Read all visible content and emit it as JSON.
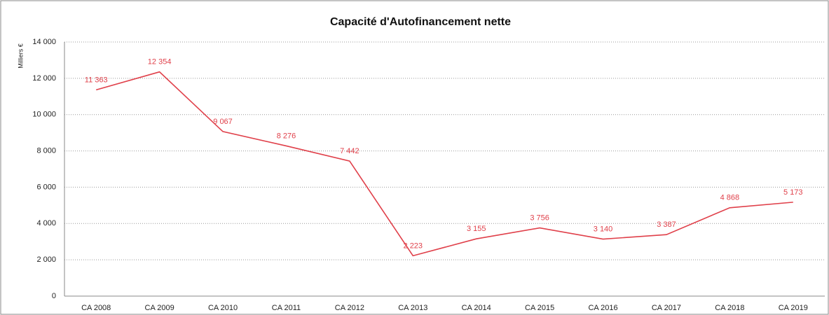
{
  "chart_data": {
    "type": "line",
    "title": "Capacité d'Autofinancement nette",
    "y_label": "Milliers €",
    "categories": [
      "CA 2008",
      "CA 2009",
      "CA 2010",
      "CA 2011",
      "CA 2012",
      "CA 2013",
      "CA 2014",
      "CA 2015",
      "CA 2016",
      "CA 2017",
      "CA 2018",
      "CA 2019"
    ],
    "series": [
      {
        "name": "Capacité d'Autofinancement nette",
        "color": "#e0404a",
        "values": [
          11363,
          12354,
          9067,
          8276,
          7442,
          2223,
          3155,
          3756,
          3140,
          3387,
          4868,
          5173
        ],
        "value_labels": [
          "11 363",
          "12 354",
          "9 067",
          "8 276",
          "7 442",
          "2 223",
          "3 155",
          "3 756",
          "3 140",
          "3 387",
          "4 868",
          "5 173"
        ]
      }
    ],
    "ylim": [
      0,
      14000
    ],
    "yticks": [
      0,
      {
        "value": 2000,
        "label": "2 000"
      },
      {
        "value": 4000,
        "label": "4 000"
      },
      {
        "value": 6000,
        "label": "6 000"
      },
      {
        "value": 8000,
        "label": "8 000"
      },
      {
        "value": 10000,
        "label": "10 000"
      },
      {
        "value": 12000,
        "label": "12 000"
      },
      {
        "value": 14000,
        "label": "14 000"
      }
    ],
    "grid": true
  }
}
